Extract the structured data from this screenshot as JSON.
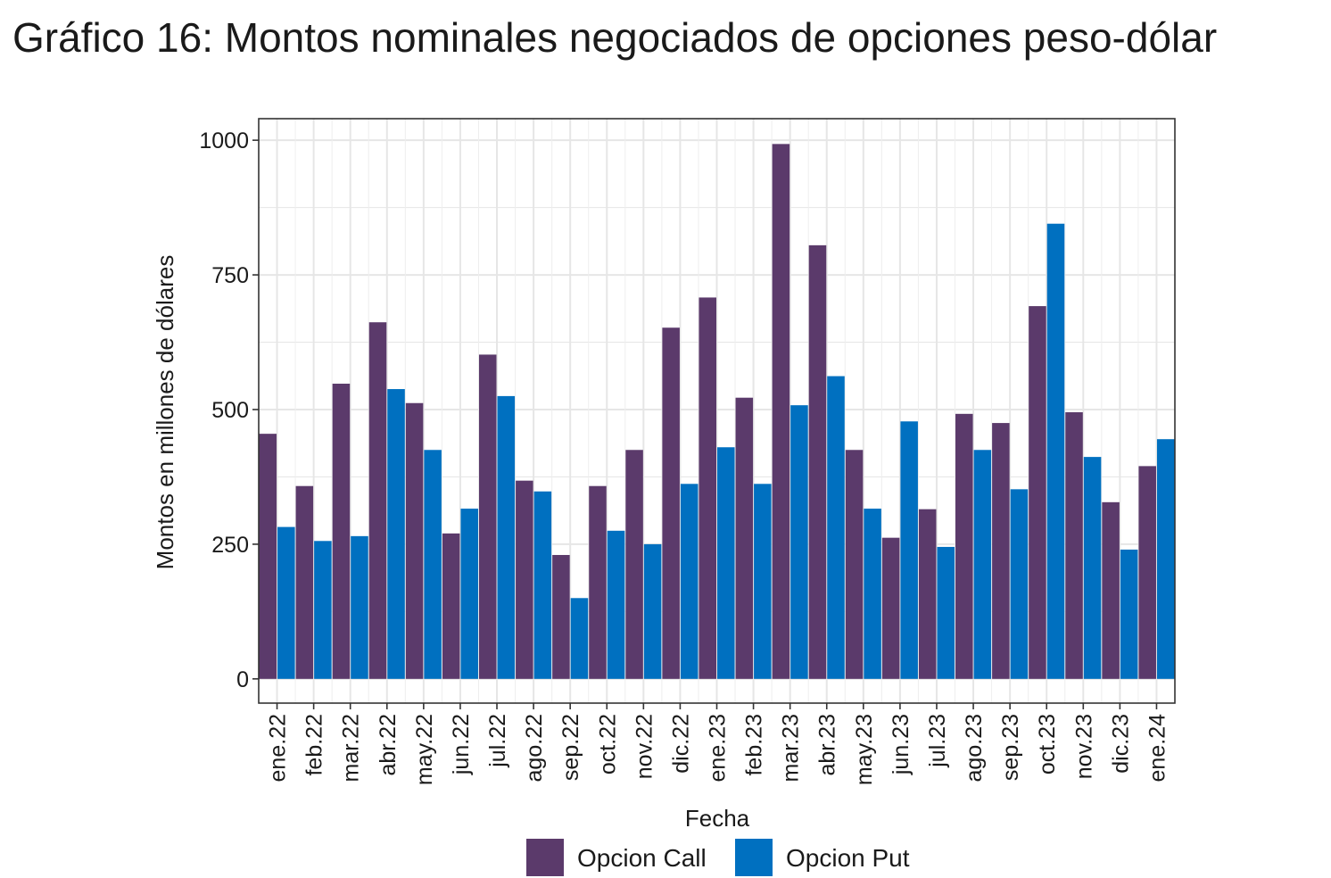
{
  "chart_title": "Gráfico 16: Montos nominales negociados de opciones peso-dólar",
  "chart_data": {
    "type": "bar",
    "title": "Gráfico 16: Montos nominales negociados de opciones peso-dólar",
    "xlabel": "Fecha",
    "ylabel": "Montos en millones de dólares",
    "ylim": [
      -45,
      1040
    ],
    "yticks": [
      0,
      250,
      500,
      750,
      1000
    ],
    "ytick_labels": [
      "0",
      "250",
      "500",
      "750",
      "1000"
    ],
    "grid": true,
    "legend_position": "bottom",
    "categories": [
      "ene.22",
      "feb.22",
      "mar.22",
      "abr.22",
      "may.22",
      "jun.22",
      "jul.22",
      "ago.22",
      "sep.22",
      "oct.22",
      "nov.22",
      "dic.22",
      "ene.23",
      "feb.23",
      "mar.23",
      "abr.23",
      "may.23",
      "jun.23",
      "jul.23",
      "ago.23",
      "sep.23",
      "oct.23",
      "nov.23",
      "dic.23",
      "ene.24"
    ],
    "series": [
      {
        "name": "Opcion Call",
        "color": "#5b3a6b",
        "values": [
          455,
          358,
          548,
          662,
          512,
          270,
          602,
          368,
          230,
          358,
          425,
          652,
          708,
          522,
          993,
          805,
          425,
          262,
          315,
          492,
          475,
          692,
          495,
          328,
          395
        ]
      },
      {
        "name": "Opcion Put",
        "color": "#0070c0",
        "values": [
          282,
          256,
          265,
          538,
          425,
          316,
          525,
          348,
          150,
          275,
          250,
          362,
          430,
          362,
          508,
          562,
          316,
          478,
          245,
          425,
          352,
          845,
          412,
          240,
          445
        ]
      }
    ]
  }
}
